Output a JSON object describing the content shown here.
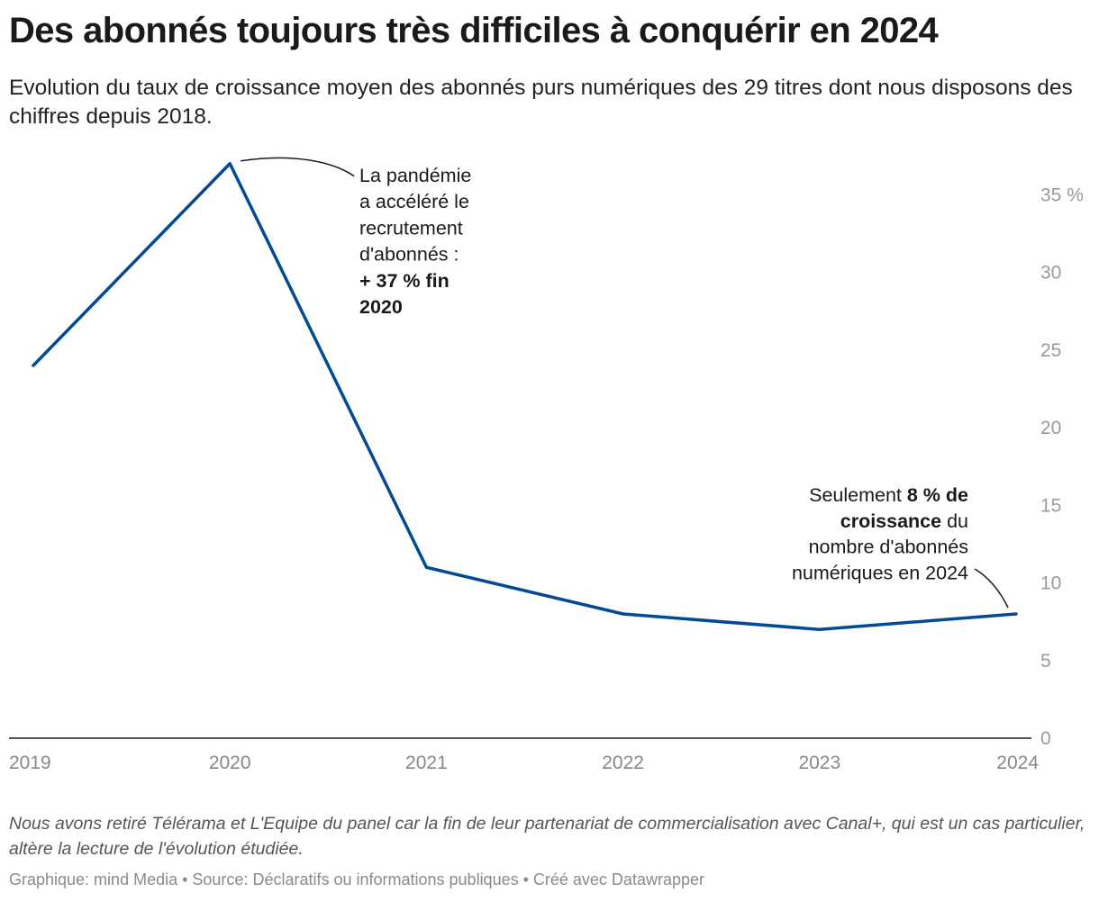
{
  "header": {
    "title": "Des abonnés toujours très difficiles à conquérir en 2024",
    "subtitle": "Evolution du taux de croissance moyen des abonnés purs numériques des 29 titres dont nous disposons des chiffres depuis 2018."
  },
  "chart_data": {
    "type": "line",
    "title": "Des abonnés toujours très difficiles à conquérir en 2024",
    "subtitle": "Evolution du taux de croissance moyen des abonnés purs numériques des 29 titres dont nous disposons des chiffres depuis 2018.",
    "xlabel": "",
    "ylabel": "",
    "x": [
      "2019",
      "2020",
      "2021",
      "2022",
      "2023",
      "2024"
    ],
    "series": [
      {
        "values": [
          24,
          37,
          11,
          8,
          7,
          8
        ],
        "color": "#034a94"
      }
    ],
    "ylim": [
      0,
      37
    ],
    "y_axis_side": "right",
    "y_ticks": [
      0,
      5,
      10,
      15,
      20,
      25,
      30,
      35
    ],
    "y_tick_labels": [
      "0",
      "5",
      "10",
      "15",
      "20",
      "25",
      "30",
      "35 %"
    ],
    "grid": false,
    "legend": "none",
    "annotations": [
      {
        "x": "2020",
        "y": 37,
        "lines": [
          [
            {
              "text": "La pandémie",
              "bold": false
            }
          ],
          [
            {
              "text": "a accéléré le",
              "bold": false
            }
          ],
          [
            {
              "text": "recrutement",
              "bold": false
            }
          ],
          [
            {
              "text": "d'abonnés :",
              "bold": false
            }
          ],
          [
            {
              "text": "+ 37 % fin",
              "bold": true
            }
          ],
          [
            {
              "text": "2020",
              "bold": true
            }
          ]
        ]
      },
      {
        "x": "2024",
        "y": 8,
        "lines": [
          [
            {
              "text": "Seulement ",
              "bold": false
            },
            {
              "text": "8 % de",
              "bold": true
            }
          ],
          [
            {
              "text": "croissance",
              "bold": true
            },
            {
              "text": " du",
              "bold": false
            }
          ],
          [
            {
              "text": "nombre d'abonnés",
              "bold": false
            }
          ],
          [
            {
              "text": "numériques en 2024",
              "bold": false
            }
          ]
        ]
      }
    ]
  },
  "footer": {
    "note": "Nous avons retiré Télérama et L'Equipe du panel car la fin de leur partenariat de commercialisation avec Canal+, qui est un cas particulier, altère la lecture de l'évolution étudiée.",
    "credit": "Graphique: mind Media • Source: Déclaratifs ou informations publiques • Créé avec Datawrapper"
  }
}
